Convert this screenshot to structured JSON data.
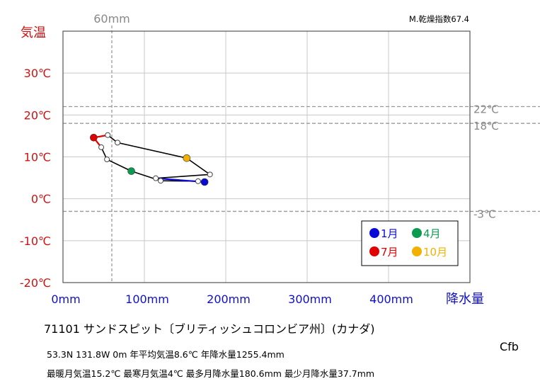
{
  "chart_data": {
    "type": "line",
    "subtype": "climograph",
    "title": "",
    "dryness_index": "M.乾燥指数67.4",
    "ylabel": "気温",
    "xlabel": "降水量",
    "xlim": [
      0,
      500
    ],
    "ylim": [
      -20,
      40
    ],
    "x_ticks": [
      {
        "value": 0,
        "label": "0mm"
      },
      {
        "value": 100,
        "label": "100mm"
      },
      {
        "value": 200,
        "label": "200mm"
      },
      {
        "value": 300,
        "label": "300mm"
      },
      {
        "value": 400,
        "label": "400mm"
      }
    ],
    "y_ticks": [
      {
        "value": 30,
        "label": "30℃"
      },
      {
        "value": 20,
        "label": "20℃"
      },
      {
        "value": 10,
        "label": "10℃"
      },
      {
        "value": 0,
        "label": "0℃"
      },
      {
        "value": -10,
        "label": "-10℃"
      },
      {
        "value": -20,
        "label": "-20℃"
      }
    ],
    "reference_lines": {
      "vertical": [
        {
          "x": 60,
          "label": "60mm"
        }
      ],
      "horizontal": [
        {
          "y": 22,
          "label": "22℃"
        },
        {
          "y": 18,
          "label": "18℃"
        },
        {
          "y": -3,
          "label": "-3℃"
        }
      ]
    },
    "monthly": [
      {
        "month": 1,
        "precip": 174,
        "temp": 4.0
      },
      {
        "month": 2,
        "precip": 166,
        "temp": 4.2
      },
      {
        "month": 3,
        "precip": 120,
        "temp": 4.3
      },
      {
        "month": 4,
        "precip": 84,
        "temp": 6.6
      },
      {
        "month": 5,
        "precip": 54,
        "temp": 9.4
      },
      {
        "month": 6,
        "precip": 47,
        "temp": 12.3
      },
      {
        "month": 7,
        "precip": 37.7,
        "temp": 14.6
      },
      {
        "month": 8,
        "precip": 55,
        "temp": 15.2
      },
      {
        "month": 9,
        "precip": 67,
        "temp": 13.4
      },
      {
        "month": 10,
        "precip": 152,
        "temp": 9.7
      },
      {
        "month": 11,
        "precip": 180.6,
        "temp": 5.8
      },
      {
        "month": 12,
        "precip": 114,
        "temp": 4.9
      }
    ],
    "legend": [
      {
        "month": 1,
        "label": "1月",
        "color": "#0a0ad8"
      },
      {
        "month": 4,
        "label": "4月",
        "color": "#0a9a50"
      },
      {
        "month": 7,
        "label": "7月",
        "color": "#e00000"
      },
      {
        "month": 10,
        "label": "10月",
        "color": "#f2b100"
      }
    ],
    "legend_position": "bottom-right",
    "colors": {
      "temp_axis": "#d01010",
      "precip_axis": "#1010c8",
      "reference": "#999999",
      "winter_segment": "#0a0ad8",
      "summer_segment": "#e00000",
      "path": "#000000"
    }
  },
  "station": "71101  サンドスピット〔ブリティッシュコロンビア州〕(カナダ)",
  "coords": "53.3N  131.8W 0m  年平均気温8.6℃ 年降水量1255.4mm",
  "extremes": "最暖月気温15.2℃ 最寒月気温4℃ 最多月降水量180.6mm 最少月降水量37.7mm",
  "koppen": "Cfb"
}
